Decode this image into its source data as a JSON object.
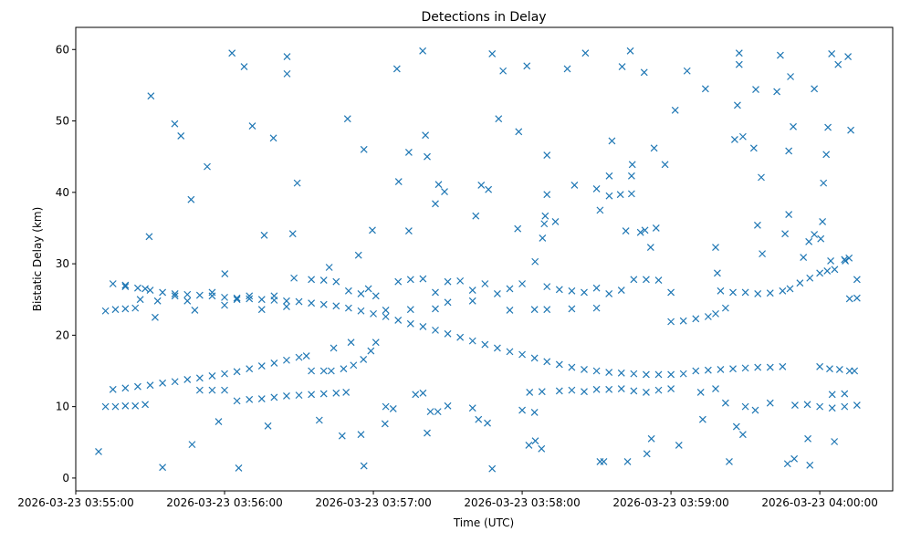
{
  "chart_data": {
    "type": "scatter",
    "title": "Detections in Delay",
    "xlabel": "Time (UTC)",
    "ylabel": "Bistatic Delay (km)",
    "x_unit": "seconds after 2026-03-23 03:55:00",
    "xlim": [
      0,
      329.4
    ],
    "ylim": [
      -1.8,
      63.1
    ],
    "grid": false,
    "marker": "x",
    "color": "#1f77b4",
    "x_ticks": [
      {
        "value": 0,
        "label": "2026-03-23 03:55:00"
      },
      {
        "value": 60,
        "label": "2026-03-23 03:56:00"
      },
      {
        "value": 120,
        "label": "2026-03-23 03:57:00"
      },
      {
        "value": 180,
        "label": "2026-03-23 03:58:00"
      },
      {
        "value": 240,
        "label": "2026-03-23 03:59:00"
      },
      {
        "value": 300,
        "label": "2026-03-23 04:00:00"
      }
    ],
    "y_ticks": [
      {
        "value": 0,
        "label": "0"
      },
      {
        "value": 10,
        "label": "10"
      },
      {
        "value": 20,
        "label": "20"
      },
      {
        "value": 30,
        "label": "30"
      },
      {
        "value": 40,
        "label": "40"
      },
      {
        "value": 50,
        "label": "50"
      },
      {
        "value": 60,
        "label": "60"
      }
    ],
    "points": [
      [
        15,
        27.2
      ],
      [
        20,
        27.0
      ],
      [
        25,
        26.6
      ],
      [
        30,
        26.3
      ],
      [
        35,
        26.0
      ],
      [
        40,
        25.8
      ],
      [
        45,
        25.7
      ],
      [
        50,
        25.6
      ],
      [
        55,
        25.5
      ],
      [
        60,
        25.3
      ],
      [
        65,
        25.2
      ],
      [
        70,
        25.1
      ],
      [
        75,
        25.0
      ],
      [
        80,
        24.9
      ],
      [
        85,
        24.8
      ],
      [
        90,
        24.7
      ],
      [
        95,
        24.5
      ],
      [
        100,
        24.3
      ],
      [
        105,
        24.1
      ],
      [
        110,
        23.8
      ],
      [
        115,
        23.4
      ],
      [
        120,
        23.0
      ],
      [
        125,
        22.6
      ],
      [
        130,
        22.1
      ],
      [
        135,
        21.6
      ],
      [
        140,
        21.2
      ],
      [
        145,
        20.7
      ],
      [
        150,
        20.2
      ],
      [
        155,
        19.7
      ],
      [
        160,
        19.2
      ],
      [
        165,
        18.7
      ],
      [
        170,
        18.2
      ],
      [
        175,
        17.7
      ],
      [
        180,
        17.3
      ],
      [
        185,
        16.8
      ],
      [
        190,
        16.3
      ],
      [
        195,
        15.9
      ],
      [
        200,
        15.5
      ],
      [
        205,
        15.2
      ],
      [
        210,
        15.0
      ],
      [
        215,
        14.8
      ],
      [
        220,
        14.7
      ],
      [
        225,
        14.6
      ],
      [
        230,
        14.5
      ],
      [
        235,
        14.5
      ],
      [
        240,
        14.5
      ],
      [
        245,
        14.6
      ],
      [
        250,
        15.0
      ],
      [
        255,
        15.1
      ],
      [
        260,
        15.2
      ],
      [
        265,
        15.3
      ],
      [
        270,
        15.4
      ],
      [
        275,
        15.5
      ],
      [
        280,
        15.5
      ],
      [
        285,
        15.6
      ],
      [
        15,
        12.4
      ],
      [
        20,
        12.6
      ],
      [
        25,
        12.8
      ],
      [
        30,
        13.0
      ],
      [
        35,
        13.3
      ],
      [
        40,
        13.5
      ],
      [
        45,
        13.8
      ],
      [
        50,
        14.0
      ],
      [
        55,
        14.3
      ],
      [
        60,
        14.6
      ],
      [
        65,
        14.9
      ],
      [
        70,
        15.3
      ],
      [
        75,
        15.7
      ],
      [
        80,
        16.1
      ],
      [
        85,
        16.5
      ],
      [
        90,
        16.9
      ],
      [
        93,
        17.1
      ],
      [
        70,
        11.0
      ],
      [
        75,
        11.1
      ],
      [
        80,
        11.3
      ],
      [
        85,
        11.5
      ],
      [
        90,
        11.6
      ],
      [
        95,
        11.7
      ],
      [
        100,
        11.8
      ],
      [
        105,
        11.9
      ],
      [
        109,
        12.0
      ],
      [
        103,
        15.0
      ],
      [
        108,
        15.3
      ],
      [
        112,
        15.8
      ],
      [
        116,
        16.6
      ],
      [
        119,
        17.8
      ],
      [
        121,
        19.0
      ],
      [
        104,
        18.2
      ],
      [
        111,
        19.0
      ],
      [
        95,
        15.0
      ],
      [
        100,
        15.0
      ],
      [
        12,
        10.0
      ],
      [
        16,
        10.0
      ],
      [
        20,
        10.1
      ],
      [
        24,
        10.1
      ],
      [
        28,
        10.3
      ],
      [
        12,
        23.4
      ],
      [
        16,
        23.6
      ],
      [
        20,
        23.7
      ],
      [
        24,
        23.8
      ],
      [
        50,
        12.3
      ],
      [
        55,
        12.3
      ],
      [
        60,
        12.3
      ],
      [
        65,
        10.8
      ],
      [
        130,
        27.5
      ],
      [
        135,
        27.8
      ],
      [
        140,
        27.9
      ],
      [
        145,
        26.0
      ],
      [
        150,
        27.5
      ],
      [
        155,
        27.6
      ],
      [
        160,
        26.3
      ],
      [
        165,
        27.2
      ],
      [
        170,
        25.8
      ],
      [
        175,
        26.5
      ],
      [
        180,
        27.2
      ],
      [
        185,
        23.6
      ],
      [
        190,
        26.8
      ],
      [
        195,
        26.4
      ],
      [
        200,
        26.2
      ],
      [
        205,
        26.0
      ],
      [
        210,
        26.6
      ],
      [
        215,
        25.8
      ],
      [
        220,
        26.3
      ],
      [
        225,
        27.8
      ],
      [
        230,
        27.8
      ],
      [
        235,
        27.7
      ],
      [
        240,
        26.0
      ],
      [
        125,
        23.5
      ],
      [
        135,
        23.6
      ],
      [
        145,
        23.7
      ],
      [
        150,
        24.6
      ],
      [
        160,
        24.8
      ],
      [
        175,
        23.5
      ],
      [
        190,
        23.6
      ],
      [
        200,
        23.7
      ],
      [
        210,
        23.8
      ],
      [
        183,
        12.0
      ],
      [
        188,
        12.1
      ],
      [
        195,
        12.2
      ],
      [
        200,
        12.3
      ],
      [
        205,
        12.1
      ],
      [
        210,
        12.4
      ],
      [
        215,
        12.4
      ],
      [
        220,
        12.5
      ],
      [
        225,
        12.2
      ],
      [
        230,
        12.0
      ],
      [
        235,
        12.3
      ],
      [
        240,
        12.5
      ],
      [
        180,
        9.5
      ],
      [
        185,
        9.2
      ],
      [
        160,
        9.8
      ],
      [
        150,
        10.1
      ],
      [
        143,
        9.3
      ],
      [
        146,
        9.3
      ],
      [
        125,
        10.0
      ],
      [
        128,
        9.7
      ],
      [
        137,
        11.7
      ],
      [
        140,
        11.9
      ],
      [
        260,
        26.2
      ],
      [
        265,
        26.0
      ],
      [
        270,
        26.0
      ],
      [
        275,
        25.8
      ],
      [
        280,
        25.9
      ],
      [
        285,
        26.2
      ],
      [
        288,
        26.5
      ],
      [
        292,
        27.3
      ],
      [
        296,
        28.0
      ],
      [
        300,
        28.7
      ],
      [
        303,
        29.0
      ],
      [
        306,
        29.2
      ],
      [
        310,
        30.6
      ],
      [
        300,
        15.6
      ],
      [
        304,
        15.3
      ],
      [
        308,
        15.2
      ],
      [
        312,
        15.0
      ],
      [
        314,
        15.0
      ],
      [
        290,
        10.2
      ],
      [
        295,
        10.3
      ],
      [
        300,
        10.0
      ],
      [
        305,
        9.8
      ],
      [
        310,
        10.0
      ],
      [
        315,
        10.2
      ],
      [
        305,
        11.7
      ],
      [
        310,
        11.8
      ],
      [
        312,
        25.1
      ],
      [
        315,
        25.2
      ],
      [
        315,
        27.8
      ],
      [
        240,
        21.9
      ],
      [
        245,
        22.0
      ],
      [
        250,
        22.3
      ],
      [
        255,
        22.6
      ],
      [
        258,
        23.0
      ],
      [
        262,
        23.8
      ],
      [
        252,
        12.0
      ],
      [
        258,
        12.5
      ],
      [
        262,
        10.5
      ],
      [
        270,
        10.0
      ],
      [
        274,
        9.5
      ],
      [
        280,
        10.5
      ],
      [
        40,
        25.5
      ],
      [
        45,
        24.8
      ],
      [
        48,
        23.5
      ],
      [
        55,
        26.0
      ],
      [
        60,
        24.2
      ],
      [
        65,
        25.0
      ],
      [
        70,
        25.5
      ],
      [
        75,
        23.6
      ],
      [
        80,
        25.5
      ],
      [
        85,
        24.0
      ],
      [
        88,
        28.0
      ],
      [
        95,
        27.8
      ],
      [
        100,
        27.7
      ],
      [
        105,
        27.5
      ],
      [
        110,
        26.2
      ],
      [
        115,
        25.8
      ],
      [
        118,
        26.5
      ],
      [
        121,
        25.5
      ],
      [
        28,
        26.5
      ],
      [
        32,
        22.5
      ],
      [
        26,
        25.0
      ],
      [
        33,
        24.8
      ],
      [
        20,
        26.8
      ],
      [
        30.3,
        53.5
      ],
      [
        39.9,
        49.6
      ],
      [
        42.4,
        47.9
      ],
      [
        46.5,
        39.0
      ],
      [
        53,
        43.6
      ],
      [
        63,
        59.5
      ],
      [
        67.9,
        57.6
      ],
      [
        71.2,
        49.3
      ],
      [
        79.7,
        47.6
      ],
      [
        85.2,
        59.0
      ],
      [
        85.2,
        56.6
      ],
      [
        76,
        34.0
      ],
      [
        87.5,
        34.2
      ],
      [
        89.3,
        41.3
      ],
      [
        29.6,
        33.8
      ],
      [
        109.6,
        50.3
      ],
      [
        116.2,
        46.0
      ],
      [
        119.6,
        34.7
      ],
      [
        129.5,
        57.3
      ],
      [
        130.2,
        41.5
      ],
      [
        134.3,
        45.6
      ],
      [
        139.9,
        59.8
      ],
      [
        141,
        48.0
      ],
      [
        141.7,
        45.0
      ],
      [
        161.3,
        36.7
      ],
      [
        163.5,
        41.0
      ],
      [
        166.4,
        40.4
      ],
      [
        167.9,
        59.4
      ],
      [
        170.5,
        50.3
      ],
      [
        172.3,
        57.0
      ],
      [
        178.6,
        48.5
      ],
      [
        181.9,
        57.7
      ],
      [
        198.2,
        57.3
      ],
      [
        205.5,
        59.5
      ],
      [
        201.1,
        41.0
      ],
      [
        220.3,
        57.6
      ],
      [
        223.6,
        59.8
      ],
      [
        229.2,
        56.8
      ],
      [
        216.2,
        47.2
      ],
      [
        224.4,
        43.9
      ],
      [
        233.2,
        46.2
      ],
      [
        237.6,
        43.9
      ],
      [
        241.7,
        51.5
      ],
      [
        246.5,
        57.0
      ],
      [
        253.9,
        54.5
      ],
      [
        266.8,
        52.2
      ],
      [
        267.5,
        59.5
      ],
      [
        267.5,
        57.9
      ],
      [
        274.2,
        54.4
      ],
      [
        282.7,
        54.1
      ],
      [
        284.1,
        59.2
      ],
      [
        288.2,
        56.2
      ],
      [
        289.3,
        49.2
      ],
      [
        297.8,
        54.5
      ],
      [
        304.8,
        59.4
      ],
      [
        307.4,
        57.9
      ],
      [
        311.4,
        59.0
      ],
      [
        303.3,
        49.1
      ],
      [
        302.6,
        45.3
      ],
      [
        276.4,
        42.1
      ],
      [
        269,
        47.8
      ],
      [
        265.7,
        47.4
      ],
      [
        273.4,
        46.2
      ],
      [
        287.5,
        45.8
      ],
      [
        301.5,
        41.3
      ],
      [
        312.5,
        48.7
      ],
      [
        9.2,
        3.7
      ],
      [
        35,
        1.5
      ],
      [
        46.9,
        4.7
      ],
      [
        65.7,
        1.4
      ],
      [
        116.2,
        1.7
      ],
      [
        115,
        6.1
      ],
      [
        107.4,
        5.9
      ],
      [
        167.9,
        1.3
      ],
      [
        182.7,
        4.6
      ],
      [
        185.3,
        5.2
      ],
      [
        187.8,
        4.1
      ],
      [
        211.4,
        2.3
      ],
      [
        212.9,
        2.3
      ],
      [
        222.5,
        2.3
      ],
      [
        230.3,
        3.4
      ],
      [
        232.1,
        5.5
      ],
      [
        243.2,
        4.6
      ],
      [
        263.5,
        2.3
      ],
      [
        266.4,
        7.2
      ],
      [
        269,
        6.1
      ],
      [
        287,
        2.0
      ],
      [
        289.7,
        2.7
      ],
      [
        295.2,
        5.5
      ],
      [
        296,
        1.8
      ],
      [
        305.9,
        5.1
      ],
      [
        141.7,
        6.3
      ],
      [
        57.6,
        7.9
      ],
      [
        77.5,
        7.3
      ],
      [
        98.2,
        8.1
      ],
      [
        124.7,
        7.6
      ],
      [
        162.4,
        8.2
      ],
      [
        166,
        7.7
      ],
      [
        252.8,
        8.2
      ],
      [
        134.3,
        34.6
      ],
      [
        145,
        38.4
      ],
      [
        146.3,
        41.1
      ],
      [
        148.7,
        40.1
      ],
      [
        178.2,
        34.9
      ],
      [
        188.2,
        33.6
      ],
      [
        188.9,
        35.6
      ],
      [
        189.3,
        36.7
      ],
      [
        190,
        39.7
      ],
      [
        190,
        45.2
      ],
      [
        193.4,
        35.9
      ],
      [
        185.2,
        30.3
      ],
      [
        210,
        40.5
      ],
      [
        211.4,
        37.5
      ],
      [
        215.1,
        42.3
      ],
      [
        215.1,
        39.5
      ],
      [
        219.6,
        39.7
      ],
      [
        221.8,
        34.6
      ],
      [
        224.1,
        42.3
      ],
      [
        224.1,
        39.8
      ],
      [
        227.7,
        34.4
      ],
      [
        229.5,
        34.7
      ],
      [
        231.8,
        32.3
      ],
      [
        234,
        35.0
      ],
      [
        258,
        32.3
      ],
      [
        258.7,
        28.7
      ],
      [
        274.9,
        35.4
      ],
      [
        276.8,
        31.4
      ],
      [
        287.5,
        36.9
      ],
      [
        286,
        34.2
      ],
      [
        295.6,
        33.1
      ],
      [
        297.8,
        34.1
      ],
      [
        300.4,
        33.5
      ],
      [
        301.1,
        35.9
      ],
      [
        293.4,
        30.9
      ],
      [
        304.4,
        30.4
      ],
      [
        310.3,
        30.4
      ],
      [
        311.8,
        30.8
      ],
      [
        114,
        31.2
      ],
      [
        102.2,
        29.5
      ],
      [
        60.1,
        28.6
      ]
    ]
  }
}
